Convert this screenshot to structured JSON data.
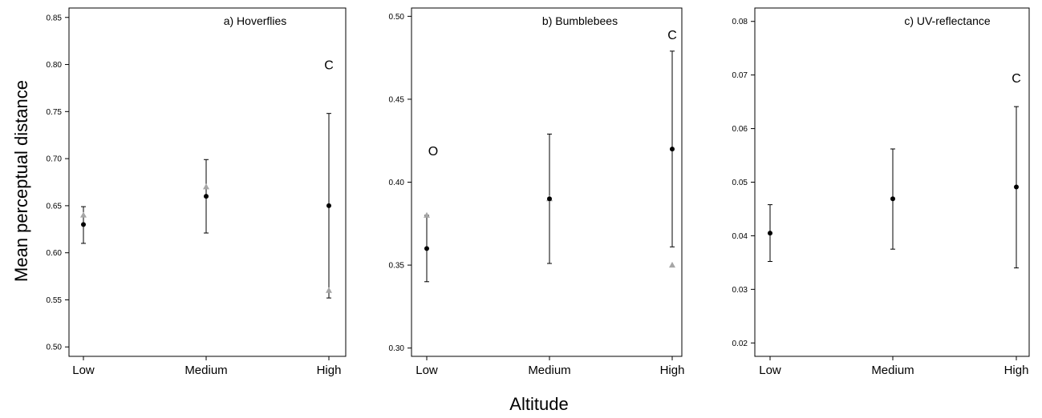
{
  "figure": {
    "ylabel": "Mean perceptual distance",
    "xlabel": "Altitude",
    "colors": {
      "black_series": "#000000",
      "grey_series": "#a6a6a6",
      "axes": "#000000"
    }
  },
  "chart_data": [
    {
      "type": "scatter",
      "title": "a) Hoverflies",
      "categories": [
        "Low",
        "Medium",
        "High"
      ],
      "ylim": [
        0.49,
        0.86
      ],
      "yticks": [
        "0.50",
        "0.55",
        "0.60",
        "0.65",
        "0.70",
        "0.75",
        "0.80",
        "0.85"
      ],
      "series": [
        {
          "marker": "circle",
          "color": "#000000",
          "values": [
            0.63,
            0.66,
            0.65
          ],
          "error_low": [
            0.61,
            0.621,
            0.552
          ],
          "error_high": [
            0.649,
            0.699,
            0.748
          ]
        },
        {
          "marker": "triangle",
          "color": "#a6a6a6",
          "values": [
            0.64,
            0.67,
            0.56
          ]
        }
      ],
      "annotations": [
        {
          "text": "C",
          "x": "High",
          "y": 0.8
        }
      ]
    },
    {
      "type": "scatter",
      "title": "b) Bumblebees",
      "categories": [
        "Low",
        "Medium",
        "High"
      ],
      "ylim": [
        0.295,
        0.505
      ],
      "yticks": [
        "0.30",
        "0.35",
        "0.40",
        "0.45",
        "0.50"
      ],
      "series": [
        {
          "marker": "circle",
          "color": "#000000",
          "values": [
            0.36,
            0.39,
            0.42
          ],
          "error_low": [
            0.34,
            0.351,
            0.361
          ],
          "error_high": [
            0.38,
            0.429,
            0.479
          ]
        },
        {
          "marker": "triangle",
          "color": "#a6a6a6",
          "values": [
            0.38,
            0.39,
            0.35
          ]
        }
      ],
      "annotations": [
        {
          "text": "O",
          "x": "Low",
          "y": 0.419
        },
        {
          "text": "C",
          "x": "High",
          "y": 0.489
        }
      ]
    },
    {
      "type": "scatter",
      "title": "c) UV-reflectance",
      "categories": [
        "Low",
        "Medium",
        "High"
      ],
      "ylim": [
        0.0175,
        0.0825
      ],
      "yticks": [
        "0.02",
        "0.03",
        "0.04",
        "0.05",
        "0.06",
        "0.07",
        "0.08"
      ],
      "series": [
        {
          "marker": "circle",
          "color": "#000000",
          "values": [
            0.0405,
            0.0469,
            0.0491
          ],
          "error_low": [
            0.0352,
            0.0375,
            0.034
          ],
          "error_high": [
            0.0458,
            0.0562,
            0.0641
          ]
        }
      ],
      "annotations": [
        {
          "text": "C",
          "x": "High",
          "y": 0.0695
        }
      ]
    }
  ]
}
